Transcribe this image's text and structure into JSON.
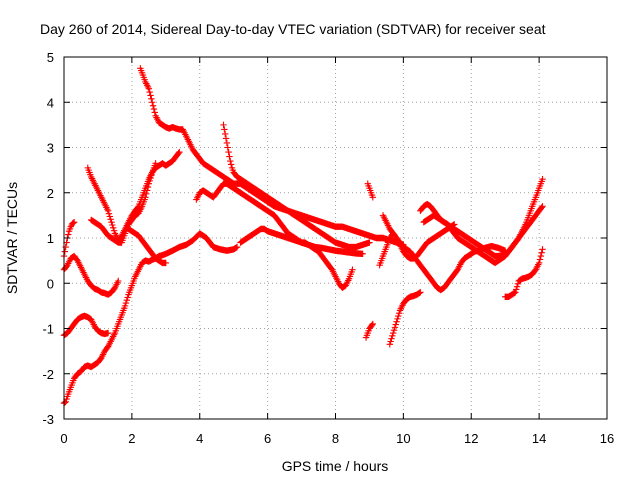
{
  "chart_data": {
    "type": "scatter",
    "title": "Day 260 of 2014, Sidereal Day-to-day VTEC variation (SDTVAR) for receiver seat",
    "xlabel": "GPS time / hours",
    "ylabel": "SDTVAR / TECUs",
    "xlim": [
      0,
      16
    ],
    "ylim": [
      -3,
      5
    ],
    "x_ticks": [
      "0",
      "2",
      "4",
      "6",
      "8",
      "10",
      "12",
      "14",
      "16"
    ],
    "y_ticks": [
      "-3",
      "-2",
      "-1",
      "0",
      "1",
      "2",
      "3",
      "4",
      "5"
    ],
    "grid": true,
    "marker": "+",
    "color": "#ff0000",
    "series": [
      {
        "x": [
          0.0,
          0.05,
          0.1,
          0.2,
          0.3,
          0.4,
          0.5,
          0.6,
          0.7,
          0.8,
          0.9,
          1.0,
          1.1,
          1.2,
          1.3,
          1.4,
          1.5,
          1.6,
          1.7,
          1.8,
          1.9,
          2.0,
          2.1,
          2.2,
          2.3,
          2.4,
          2.5,
          2.6,
          2.7,
          2.8,
          2.9,
          3.0,
          3.2,
          3.4,
          3.6,
          3.8,
          4.0,
          4.2,
          4.4,
          4.6,
          4.8,
          5.0,
          5.1
        ],
        "y": [
          -2.65,
          -2.62,
          -2.5,
          -2.3,
          -2.1,
          -2.0,
          -1.95,
          -1.85,
          -1.82,
          -1.85,
          -1.8,
          -1.75,
          -1.65,
          -1.5,
          -1.4,
          -1.25,
          -1.1,
          -0.9,
          -0.7,
          -0.5,
          -0.25,
          -0.05,
          0.15,
          0.3,
          0.45,
          0.5,
          0.48,
          0.52,
          0.55,
          0.6,
          0.62,
          0.65,
          0.72,
          0.8,
          0.85,
          0.95,
          1.1,
          1.0,
          0.8,
          0.75,
          0.72,
          0.75,
          0.8
        ]
      },
      {
        "x": [
          0.0,
          0.1,
          0.2,
          0.3,
          0.4,
          0.5,
          0.6,
          0.7,
          0.8,
          0.9,
          1.0,
          1.1,
          1.2,
          1.3
        ],
        "y": [
          -1.15,
          -1.1,
          -1.0,
          -0.9,
          -0.8,
          -0.75,
          -0.72,
          -0.75,
          -0.8,
          -0.95,
          -1.05,
          -1.1,
          -1.12,
          -1.1
        ]
      },
      {
        "x": [
          0.0,
          0.1,
          0.2,
          0.3,
          0.4,
          0.5,
          0.6,
          0.7,
          0.8,
          0.9,
          1.0,
          1.1,
          1.2,
          1.3,
          1.4,
          1.5,
          1.6
        ],
        "y": [
          0.3,
          0.4,
          0.55,
          0.6,
          0.5,
          0.35,
          0.2,
          0.05,
          -0.05,
          -0.12,
          -0.15,
          -0.2,
          -0.22,
          -0.25,
          -0.2,
          -0.1,
          0.05
        ]
      },
      {
        "x": [
          0.0,
          0.05,
          0.1,
          0.15,
          0.2,
          0.25,
          0.3
        ],
        "y": [
          0.6,
          0.8,
          1.0,
          1.15,
          1.25,
          1.32,
          1.35
        ]
      },
      {
        "x": [
          0.7,
          0.8,
          0.9,
          1.0,
          1.1,
          1.2,
          1.3,
          1.4,
          1.5,
          1.6,
          1.7,
          1.8,
          1.9,
          2.0,
          2.1,
          2.2,
          2.3,
          2.4,
          2.5,
          2.6,
          2.7,
          2.8,
          2.9,
          3.0,
          3.1,
          3.2,
          3.3,
          3.4
        ],
        "y": [
          2.55,
          2.35,
          2.2,
          2.05,
          1.9,
          1.75,
          1.6,
          1.35,
          1.1,
          0.95,
          1.05,
          1.2,
          1.35,
          1.5,
          1.6,
          1.7,
          1.9,
          2.1,
          2.3,
          2.45,
          2.55,
          2.6,
          2.65,
          2.6,
          2.65,
          2.7,
          2.8,
          2.9
        ]
      },
      {
        "x": [
          0.8,
          0.9,
          1.0,
          1.1,
          1.2,
          1.3,
          1.4,
          1.5,
          1.6,
          1.7,
          1.8,
          1.9,
          2.0,
          2.1,
          2.2,
          2.3,
          2.4,
          2.5,
          2.6,
          2.7
        ],
        "y": [
          1.4,
          1.35,
          1.3,
          1.25,
          1.15,
          1.05,
          1.0,
          0.95,
          0.9,
          0.9,
          1.1,
          1.3,
          1.4,
          1.5,
          1.55,
          1.7,
          1.9,
          2.2,
          2.45,
          2.65
        ]
      },
      {
        "x": [
          1.9,
          2.0,
          2.1,
          2.2,
          2.3,
          2.4,
          2.5,
          2.6,
          2.7,
          2.8,
          2.9,
          3.0
        ],
        "y": [
          1.2,
          1.15,
          1.1,
          1.05,
          0.95,
          0.85,
          0.75,
          0.65,
          0.55,
          0.5,
          0.45,
          0.45
        ]
      },
      {
        "x": [
          2.25,
          2.3,
          2.4,
          2.5,
          2.6,
          2.7,
          2.8,
          2.9,
          3.0,
          3.1,
          3.2,
          3.3,
          3.4,
          3.5,
          3.6,
          3.7,
          3.8,
          3.9,
          4.0,
          4.1,
          4.2,
          4.3,
          4.4,
          4.5,
          4.6,
          4.7,
          4.8,
          4.9,
          5.0,
          5.1,
          5.2,
          5.3,
          5.4,
          5.5,
          5.6,
          5.7,
          5.8,
          5.9,
          6.0,
          6.1,
          6.2,
          6.4,
          6.6,
          6.8,
          7.0,
          7.2,
          7.4,
          7.6,
          7.8,
          8.0,
          8.2,
          8.4,
          8.6,
          8.8,
          9.0,
          9.2,
          9.4,
          9.6,
          9.8,
          10.0
        ],
        "y": [
          4.75,
          4.65,
          4.45,
          4.3,
          4.0,
          3.7,
          3.55,
          3.5,
          3.45,
          3.42,
          3.45,
          3.42,
          3.4,
          3.4,
          3.25,
          3.1,
          2.95,
          2.85,
          2.75,
          2.65,
          2.6,
          2.55,
          2.5,
          2.45,
          2.4,
          2.35,
          2.3,
          2.25,
          2.2,
          2.2,
          2.2,
          2.15,
          2.1,
          2.05,
          2.0,
          1.95,
          1.9,
          1.85,
          1.8,
          1.75,
          1.7,
          1.65,
          1.6,
          1.55,
          1.5,
          1.45,
          1.4,
          1.35,
          1.3,
          1.25,
          1.25,
          1.2,
          1.15,
          1.1,
          1.05,
          1.0,
          1.0,
          0.95,
          0.9,
          0.85
        ]
      },
      {
        "x": [
          4.7,
          4.75,
          4.8,
          4.85,
          4.9,
          4.95,
          5.0,
          5.1,
          5.2,
          5.3,
          5.4,
          5.5,
          5.6,
          5.7,
          5.8,
          5.9,
          6.0,
          6.1,
          6.2,
          6.3,
          6.4,
          6.5,
          6.6,
          6.7,
          6.8,
          6.9,
          7.0,
          7.2,
          7.4,
          7.6,
          7.8,
          8.0,
          8.2,
          8.4,
          8.6,
          8.8,
          9.0
        ],
        "y": [
          3.5,
          3.3,
          3.1,
          2.9,
          2.7,
          2.55,
          2.45,
          2.35,
          2.3,
          2.25,
          2.2,
          2.15,
          2.1,
          2.05,
          2.0,
          1.95,
          1.9,
          1.85,
          1.8,
          1.75,
          1.7,
          1.65,
          1.6,
          1.55,
          1.5,
          1.45,
          1.4,
          1.3,
          1.2,
          1.1,
          1.0,
          0.9,
          0.85,
          0.8,
          0.8,
          0.85,
          0.9
        ]
      },
      {
        "x": [
          3.9,
          4.0,
          4.1,
          4.2,
          4.3,
          4.4,
          4.5,
          4.6,
          4.7,
          4.8,
          4.9,
          5.0,
          5.1,
          5.2,
          5.3,
          5.4,
          5.5,
          5.6,
          5.7,
          5.8,
          5.9,
          6.0,
          6.1,
          6.2,
          6.3,
          6.4,
          6.5,
          6.6,
          6.7,
          6.8,
          6.9,
          7.0,
          7.1,
          7.2,
          7.3,
          7.4,
          7.5,
          7.6,
          7.7,
          7.8,
          7.9,
          8.0,
          8.1,
          8.2,
          8.3,
          8.4,
          8.5
        ],
        "y": [
          1.85,
          2.0,
          2.05,
          2.0,
          1.95,
          1.9,
          2.0,
          2.1,
          2.2,
          2.2,
          2.15,
          2.1,
          2.05,
          2.0,
          1.95,
          1.9,
          1.85,
          1.8,
          1.75,
          1.7,
          1.65,
          1.6,
          1.55,
          1.5,
          1.4,
          1.3,
          1.2,
          1.1,
          1.05,
          1.0,
          0.95,
          0.9,
          0.9,
          0.85,
          0.8,
          0.75,
          0.7,
          0.6,
          0.5,
          0.4,
          0.3,
          0.15,
          0.0,
          -0.1,
          -0.05,
          0.1,
          0.3
        ]
      },
      {
        "x": [
          5.2,
          5.3,
          5.4,
          5.5,
          5.6,
          5.7,
          5.8,
          5.9,
          6.0,
          6.2,
          6.4,
          6.6,
          6.8,
          7.0,
          7.2,
          7.4,
          7.6,
          7.8,
          8.0,
          8.2,
          8.4,
          8.6,
          8.8
        ],
        "y": [
          0.9,
          0.95,
          1.0,
          1.05,
          1.1,
          1.15,
          1.2,
          1.2,
          1.15,
          1.1,
          1.05,
          1.0,
          0.95,
          0.9,
          0.85,
          0.8,
          0.78,
          0.75,
          0.72,
          0.7,
          0.68,
          0.66,
          0.65
        ]
      },
      {
        "x": [
          8.9,
          8.95,
          9.0,
          9.05,
          9.1
        ],
        "y": [
          -1.2,
          -1.1,
          -1.0,
          -0.95,
          -0.9
        ]
      },
      {
        "x": [
          8.95,
          9.0,
          9.05,
          9.1
        ],
        "y": [
          2.2,
          2.1,
          2.0,
          1.9
        ]
      },
      {
        "x": [
          9.3,
          9.4,
          9.5,
          9.6,
          9.7,
          9.8,
          9.9,
          10.0,
          10.1,
          10.2,
          10.3,
          10.4,
          10.5,
          10.6,
          10.7,
          10.8,
          10.9,
          11.0,
          11.1,
          11.2,
          11.3,
          11.4,
          11.5
        ],
        "y": [
          0.4,
          0.6,
          0.8,
          1.0,
          1.1,
          0.95,
          0.85,
          0.7,
          0.6,
          0.55,
          0.55,
          0.6,
          0.7,
          0.8,
          0.9,
          0.95,
          1.0,
          1.05,
          1.1,
          1.15,
          1.2,
          1.25,
          1.3
        ]
      },
      {
        "x": [
          9.6,
          9.7,
          9.8,
          9.9,
          10.0,
          10.1,
          10.2,
          10.3,
          10.4,
          10.5
        ],
        "y": [
          -1.35,
          -1.1,
          -0.85,
          -0.6,
          -0.45,
          -0.35,
          -0.3,
          -0.28,
          -0.25,
          -0.2
        ]
      },
      {
        "x": [
          9.4,
          9.5,
          9.6,
          9.7,
          9.8,
          9.9,
          10.0,
          10.1,
          10.2,
          10.3,
          10.4,
          10.5,
          10.6,
          10.7,
          10.8,
          10.9,
          11.0,
          11.1,
          11.2,
          11.3,
          11.4,
          11.5,
          11.6,
          11.7,
          11.8,
          11.9,
          12.0,
          12.1,
          12.2,
          12.3,
          12.4,
          12.5,
          12.6,
          12.7,
          12.8,
          12.9,
          13.0
        ],
        "y": [
          1.5,
          1.35,
          1.2,
          1.1,
          1.0,
          0.9,
          0.8,
          0.75,
          0.7,
          0.6,
          0.5,
          0.4,
          0.3,
          0.2,
          0.1,
          0.0,
          -0.1,
          -0.15,
          -0.1,
          0.0,
          0.1,
          0.2,
          0.3,
          0.45,
          0.55,
          0.6,
          0.65,
          0.7,
          0.72,
          0.75,
          0.78,
          0.8,
          0.82,
          0.8,
          0.78,
          0.75,
          0.72
        ]
      },
      {
        "x": [
          10.5,
          10.6,
          10.7,
          10.8,
          10.9,
          11.0,
          11.1,
          11.2,
          11.3,
          11.4,
          11.5,
          11.6,
          11.7,
          11.8,
          11.9,
          12.0,
          12.1,
          12.2,
          12.3,
          12.4,
          12.5,
          12.6,
          12.7,
          12.8,
          12.9,
          13.0,
          13.1,
          13.2,
          13.3,
          13.4,
          13.5,
          13.6,
          13.7,
          13.8,
          13.9,
          14.0,
          14.1
        ],
        "y": [
          1.6,
          1.7,
          1.75,
          1.7,
          1.6,
          1.5,
          1.4,
          1.35,
          1.3,
          1.25,
          1.2,
          1.15,
          1.1,
          1.05,
          1.0,
          0.95,
          0.9,
          0.85,
          0.8,
          0.75,
          0.7,
          0.65,
          0.6,
          0.6,
          0.62,
          0.65,
          0.7,
          0.8,
          0.9,
          1.0,
          1.15,
          1.3,
          1.5,
          1.7,
          1.9,
          2.1,
          2.3
        ]
      },
      {
        "x": [
          10.6,
          10.7,
          10.8,
          10.9,
          11.0,
          11.1,
          11.2,
          11.3,
          11.4,
          11.5,
          11.6,
          11.7,
          11.8,
          11.9,
          12.0,
          12.1,
          12.2,
          12.3,
          12.4,
          12.5,
          12.6,
          12.7,
          12.8,
          12.9,
          13.0,
          13.1,
          13.2,
          13.3,
          13.4,
          13.5,
          13.6,
          13.7,
          13.8,
          13.9,
          14.0,
          14.1
        ],
        "y": [
          1.35,
          1.4,
          1.45,
          1.5,
          1.45,
          1.4,
          1.35,
          1.3,
          1.2,
          1.1,
          1.0,
          0.95,
          0.9,
          0.85,
          0.8,
          0.75,
          0.7,
          0.65,
          0.6,
          0.55,
          0.5,
          0.45,
          0.5,
          0.55,
          0.6,
          0.7,
          0.8,
          0.9,
          1.0,
          1.1,
          1.2,
          1.3,
          1.4,
          1.5,
          1.6,
          1.7
        ]
      },
      {
        "x": [
          13.0,
          13.1,
          13.2,
          13.3,
          13.4,
          13.5,
          13.6,
          13.7,
          13.8,
          13.9,
          14.0,
          14.05,
          14.1
        ],
        "y": [
          -0.3,
          -0.3,
          -0.25,
          -0.2,
          0.05,
          0.1,
          0.12,
          0.15,
          0.2,
          0.3,
          0.45,
          0.6,
          0.75
        ]
      }
    ]
  }
}
